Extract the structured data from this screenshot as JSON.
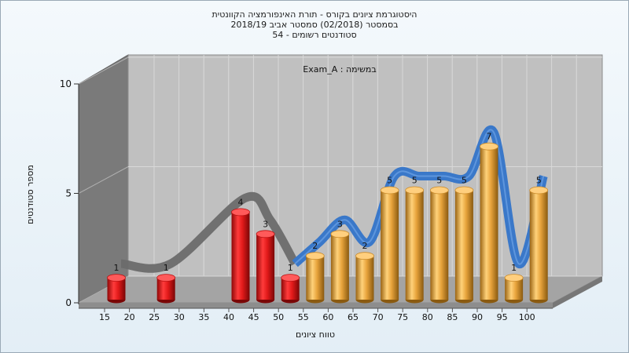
{
  "chart_data": {
    "type": "bar",
    "title_lines": [
      "היסטוגרמת ציונים בקורס - תורת האינפורמציה הקוונטית",
      "בסמסטר  (02/2018)  סמסטר אביב 2018/19",
      "סטודנטים רשומים - 54"
    ],
    "annotation": "במשימה : Exam_A",
    "xlabel": "טווח ציונים",
    "ylabel": "מספר סטודנטים",
    "ylim": [
      0,
      10
    ],
    "yticks": [
      0,
      5,
      10
    ],
    "xticks": [
      "15",
      "20",
      "25",
      "30",
      "35",
      "40",
      "45",
      "50",
      "55",
      "60",
      "65",
      "70",
      "75",
      "80",
      "85",
      "90",
      "95",
      "100"
    ],
    "categories": [
      "15",
      "25",
      "40",
      "45",
      "50",
      "55",
      "60",
      "65",
      "70",
      "75",
      "80",
      "85",
      "90",
      "95",
      "100"
    ],
    "values": [
      1,
      1,
      4,
      3,
      1,
      2,
      3,
      2,
      5,
      5,
      5,
      5,
      7,
      1,
      5
    ],
    "bar_groups": [
      "fail",
      "fail",
      "fail",
      "fail",
      "fail",
      "pass",
      "pass",
      "pass",
      "pass",
      "pass",
      "pass",
      "pass",
      "pass",
      "pass",
      "pass"
    ],
    "colors": {
      "fail": "#e21a1a",
      "pass": "#e8a43c",
      "curve": "#3a78c9",
      "wall": "#7a7a7a",
      "plot_back": "#c0c0c0",
      "floor": "#a4a4a4"
    },
    "grid": true
  }
}
